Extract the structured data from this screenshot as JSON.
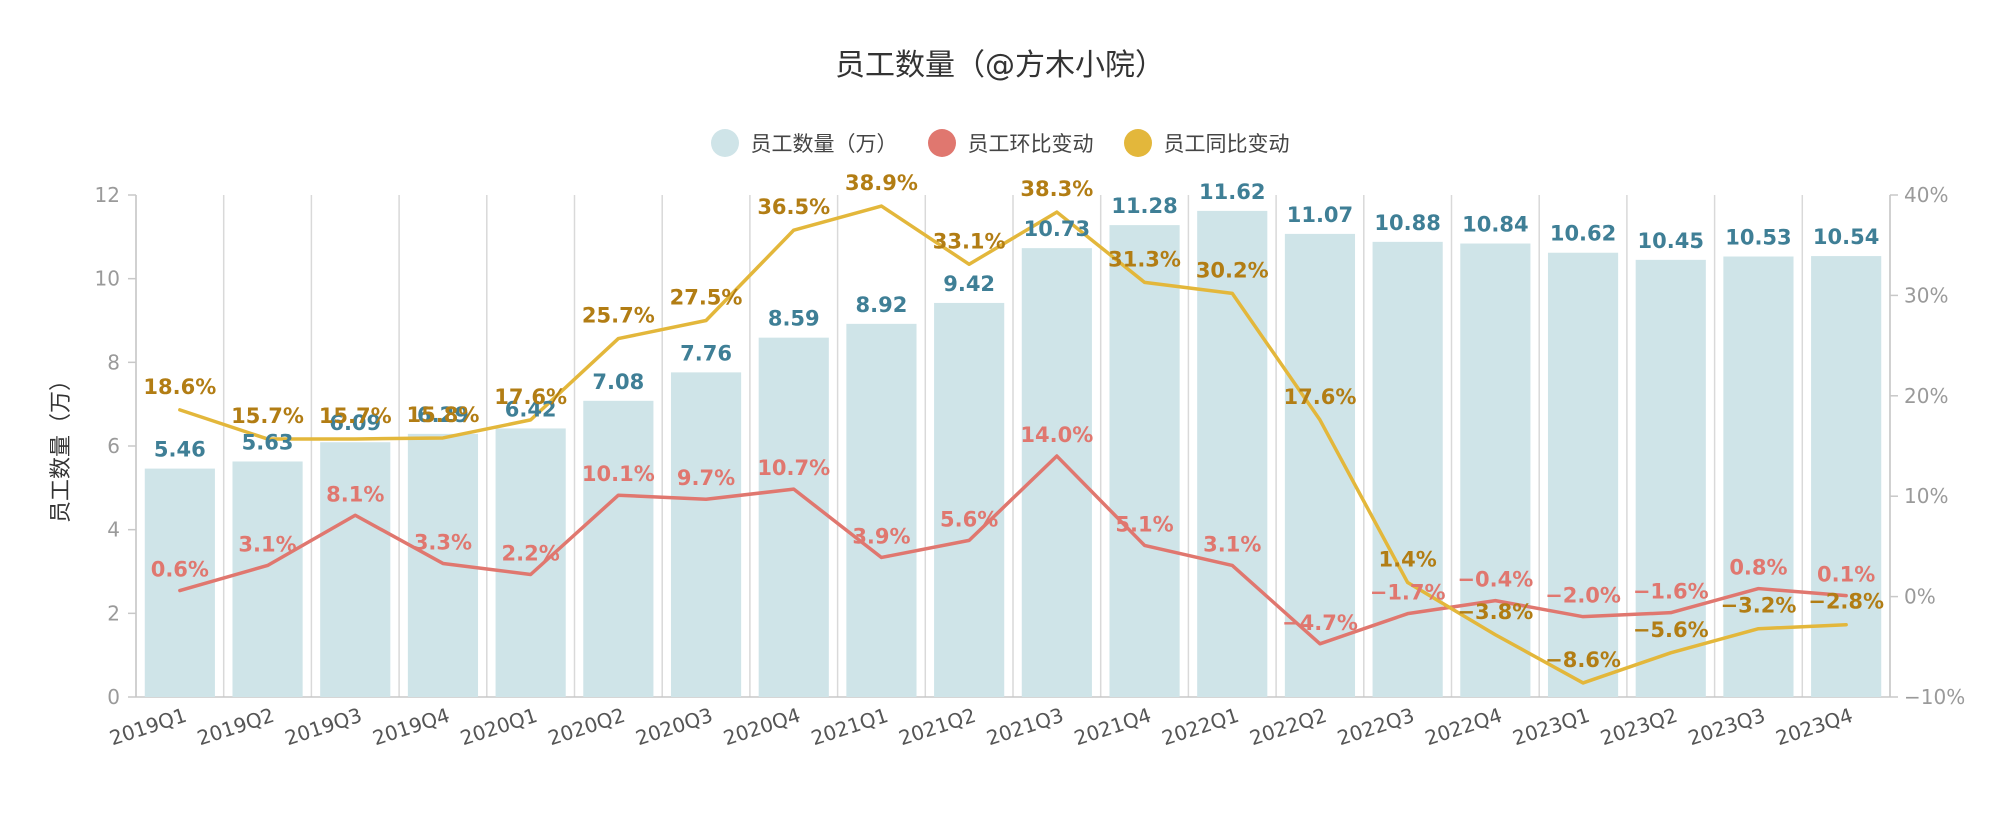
{
  "chart_data": {
    "type": "bar",
    "title": "员工数量（@方木小院）",
    "ylabel": "员工数量（万）",
    "ylim": [
      0,
      12
    ],
    "y2lim": [
      -10,
      40
    ],
    "yticks": [
      "0",
      "2",
      "4",
      "6",
      "8",
      "10",
      "12"
    ],
    "y2ticks": [
      "−10%",
      "0%",
      "10%",
      "20%",
      "30%",
      "40%"
    ],
    "grid": "vertical",
    "legend_position": "top-center",
    "categories": [
      "2019Q1",
      "2019Q2",
      "2019Q3",
      "2019Q4",
      "2020Q1",
      "2020Q2",
      "2020Q3",
      "2020Q4",
      "2021Q1",
      "2021Q2",
      "2021Q3",
      "2021Q4",
      "2022Q1",
      "2022Q2",
      "2022Q3",
      "2022Q4",
      "2023Q1",
      "2023Q2",
      "2023Q3",
      "2023Q4"
    ],
    "series": [
      {
        "name": "员工数量（万）",
        "kind": "bar",
        "axis": "left",
        "color": "#cfe4e8",
        "values": [
          5.46,
          5.63,
          6.09,
          6.29,
          6.42,
          7.08,
          7.76,
          8.59,
          8.92,
          9.42,
          10.73,
          11.28,
          11.62,
          11.07,
          10.88,
          10.84,
          10.62,
          10.45,
          10.53,
          10.54
        ],
        "labels": [
          "5.46",
          "5.63",
          "6.09",
          "6.29",
          "6.42",
          "7.08",
          "7.76",
          "8.59",
          "8.92",
          "9.42",
          "10.73",
          "11.28",
          "11.62",
          "11.07",
          "10.88",
          "10.84",
          "10.62",
          "10.45",
          "10.53",
          "10.54"
        ]
      },
      {
        "name": "员工环比变动",
        "kind": "line",
        "axis": "right",
        "color": "#e0776f",
        "values": [
          0.6,
          3.1,
          8.1,
          3.3,
          2.2,
          10.1,
          9.7,
          10.7,
          3.9,
          5.6,
          14.0,
          5.1,
          3.1,
          -4.7,
          -1.7,
          -0.4,
          -2.0,
          -1.6,
          0.8,
          0.1
        ],
        "labels": [
          "0.6%",
          "3.1%",
          "8.1%",
          "3.3%",
          "2.2%",
          "10.1%",
          "9.7%",
          "10.7%",
          "3.9%",
          "5.6%",
          "14.0%",
          "5.1%",
          "3.1%",
          "−4.7%",
          "−1.7%",
          "−0.4%",
          "−2.0%",
          "−1.6%",
          "0.8%",
          "0.1%"
        ]
      },
      {
        "name": "员工同比变动",
        "kind": "line",
        "axis": "right",
        "color": "#e3b73b",
        "values": [
          18.6,
          15.7,
          15.7,
          15.8,
          17.6,
          25.7,
          27.5,
          36.5,
          38.9,
          33.1,
          38.3,
          31.3,
          30.2,
          17.6,
          1.4,
          -3.8,
          -8.6,
          -5.6,
          -3.2,
          -2.8
        ],
        "labels": [
          "18.6%",
          "15.7%",
          "15.7%",
          "15.8%",
          "17.6%",
          "25.7%",
          "27.5%",
          "36.5%",
          "38.9%",
          "33.1%",
          "38.3%",
          "31.3%",
          "30.2%",
          "17.6%",
          "1.4%",
          "−3.8%",
          "−8.6%",
          "−5.6%",
          "−3.2%",
          "−2.8%"
        ]
      }
    ]
  }
}
